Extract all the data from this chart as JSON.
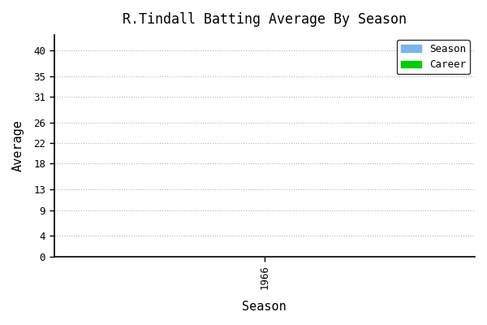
{
  "title": "R.Tindall Batting Average By Season",
  "xlabel": "Season",
  "ylabel": "Average",
  "yticks": [
    0,
    4,
    9,
    13,
    18,
    22,
    26,
    31,
    35,
    40
  ],
  "ylim": [
    0,
    43
  ],
  "xlim": [
    1965.5,
    1966.5
  ],
  "xticks": [
    1966
  ],
  "xtick_labels": [
    "1966"
  ],
  "legend_labels": [
    "Season",
    "Career"
  ],
  "legend_colors": [
    "#7ab4e8",
    "#00cc00"
  ],
  "plot_bg_color": "#ffffff",
  "grid_color": "#aaaaaa",
  "title_color": "#000000",
  "label_color": "#000000",
  "tick_color": "#000000",
  "spine_color": "#000000",
  "fig_bg_color": "#ffffff"
}
